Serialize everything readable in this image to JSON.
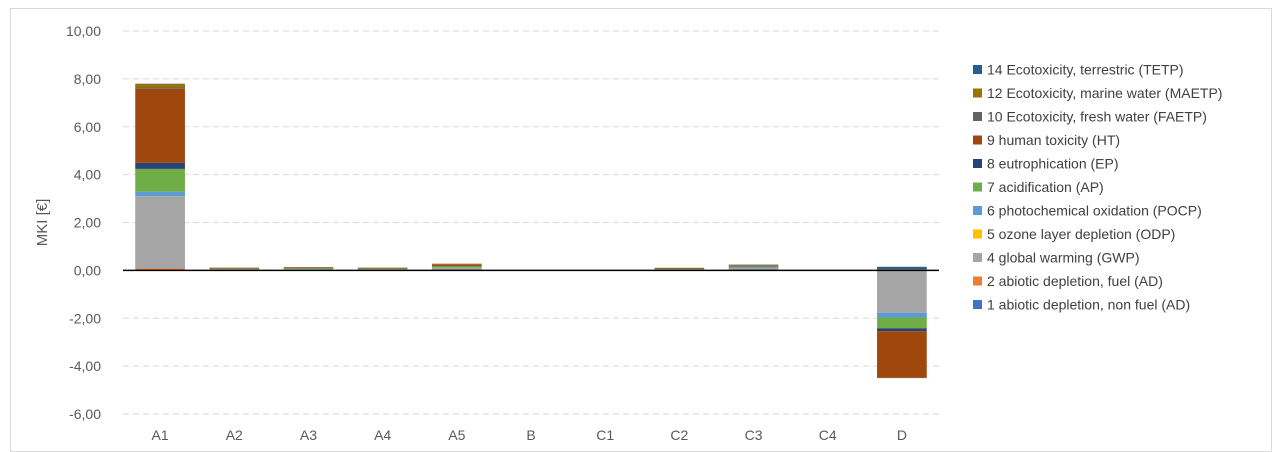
{
  "chart_data": {
    "type": "bar",
    "stacked": true,
    "title": "",
    "xlabel": "",
    "ylabel": "MKI [€]",
    "ylim": [
      -6,
      10
    ],
    "yticks": [
      10,
      8,
      6,
      4,
      2,
      0,
      -2,
      -4,
      -6
    ],
    "ytick_labels": [
      "10,00",
      "8,00",
      "6,00",
      "4,00",
      "2,00",
      "0,00",
      "-2,00",
      "-4,00",
      "-6,00"
    ],
    "negative_tick_color": "#ff0000",
    "grid": "horizontal-dashed",
    "legend_position": "right",
    "categories": [
      "A1",
      "A2",
      "A3",
      "A4",
      "A5",
      "B",
      "C1",
      "C2",
      "C3",
      "C4",
      "D"
    ],
    "series": [
      {
        "name": "1 abiotic depletion, non fuel (AD)",
        "color": "#4472c4",
        "values": [
          0.02,
          0,
          0,
          0,
          0,
          0,
          0,
          0,
          0,
          0,
          0
        ]
      },
      {
        "name": "2 abiotic depletion, fuel (AD)",
        "color": "#ed7d31",
        "values": [
          0.06,
          0,
          0,
          0,
          0,
          0,
          0,
          0,
          0,
          0,
          -0.02
        ]
      },
      {
        "name": "4 global warming (GWP)",
        "color": "#a5a5a5",
        "values": [
          3.0,
          0.05,
          0.05,
          0.05,
          0.1,
          0,
          0,
          0.04,
          0.1,
          0,
          -1.75
        ]
      },
      {
        "name": "5 ozone layer depletion (ODP)",
        "color": "#ffc000",
        "values": [
          0.01,
          0,
          0,
          0,
          0,
          0,
          0,
          0,
          0,
          0,
          0
        ]
      },
      {
        "name": "6 photochemical oxidation (POCP)",
        "color": "#5b9bd5",
        "values": [
          0.2,
          0,
          0,
          0,
          0.01,
          0,
          0,
          0,
          0.02,
          0,
          -0.2
        ]
      },
      {
        "name": "7 acidification (AP)",
        "color": "#70ad47",
        "values": [
          0.95,
          0.02,
          0.04,
          0.02,
          0.05,
          0,
          0,
          0.02,
          0.03,
          0,
          -0.45
        ]
      },
      {
        "name": "8 eutrophication (EP)",
        "color": "#264478",
        "values": [
          0.25,
          0.01,
          0.01,
          0.01,
          0.01,
          0,
          0,
          0.01,
          0.02,
          0,
          -0.12
        ]
      },
      {
        "name": "9 human toxicity (HT)",
        "color": "#9e480e",
        "values": [
          3.1,
          0.03,
          0.03,
          0.03,
          0.08,
          0,
          0,
          0.03,
          0.03,
          0,
          -1.95
        ]
      },
      {
        "name": "10 Ecotoxicity, fresh water (FAETP)",
        "color": "#636363",
        "values": [
          0.05,
          0,
          0,
          0,
          0.01,
          0,
          0,
          0,
          0,
          0,
          -0.01
        ]
      },
      {
        "name": "12 Ecotoxicity, marine water (MAETP)",
        "color": "#997300",
        "values": [
          0.15,
          0.01,
          0.01,
          0.01,
          0.02,
          0,
          0,
          0.01,
          0.02,
          0,
          0.05
        ]
      },
      {
        "name": "14 Ecotoxicity, terrestric (TETP)",
        "color": "#255e91",
        "values": [
          0.01,
          0,
          0,
          0,
          0,
          0,
          0,
          0,
          0.02,
          0,
          0.1
        ]
      }
    ]
  }
}
